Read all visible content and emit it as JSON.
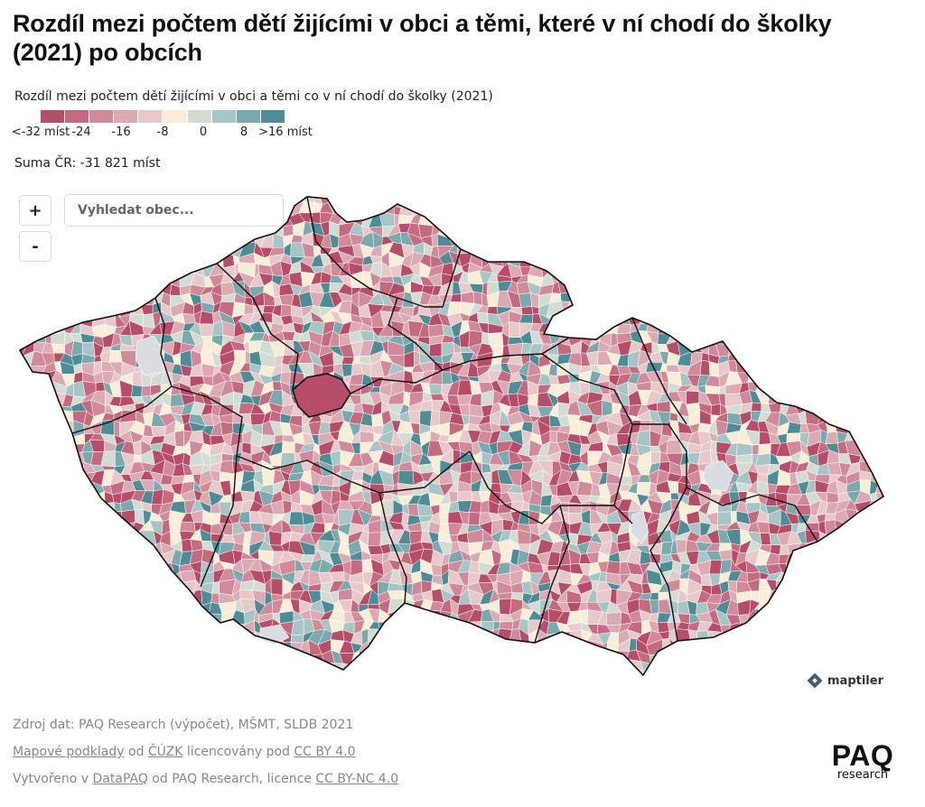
{
  "title": "Rozdíl mezi počtem dětí žijícími v obci a těmi, které v ní chodí do školky (2021) po obcích",
  "legend": {
    "title": "Rozdíl mezi počtem dětí žijícími v obci a těmi co v ní chodí do školky (2021)",
    "colors": [
      "#b64e69",
      "#c46b80",
      "#d08a99",
      "#dcaab2",
      "#e8c9c9",
      "#f6eed6",
      "#d3dcd2",
      "#a8c5c5",
      "#7aa9ae",
      "#4e8c96"
    ],
    "labels": [
      "<-32 míst",
      "-24",
      "-16",
      "-8",
      "0",
      "8",
      ">16 míst"
    ]
  },
  "summary": "Suma ČR: -31 821 míst",
  "controls": {
    "zoom_in": "+",
    "zoom_out": "-",
    "search_placeholder": "Vyhledat obec..."
  },
  "map": {
    "region": "Česká republika",
    "highlight_color": "#b64e69",
    "no_data_color": "#d9dde2",
    "border_color": "#111111"
  },
  "attribution": {
    "maptiler": "maptiler"
  },
  "footer": {
    "source": "Zdroj dat: PAQ Research (výpočet), MŠMT, SLDB 2021",
    "line2": {
      "link1": "Mapové podklady",
      "t1": " od ",
      "link2": "ČÚZK",
      "t2": " licencovány pod ",
      "link3": "CC BY 4.0"
    },
    "line3": {
      "t1": "Vytvořeno v ",
      "link1": "DataPAQ",
      "t2": " od PAQ Research, licence ",
      "link2": "CC BY-NC 4.0"
    }
  },
  "logo": {
    "name": "PAQ",
    "sub": "research"
  }
}
